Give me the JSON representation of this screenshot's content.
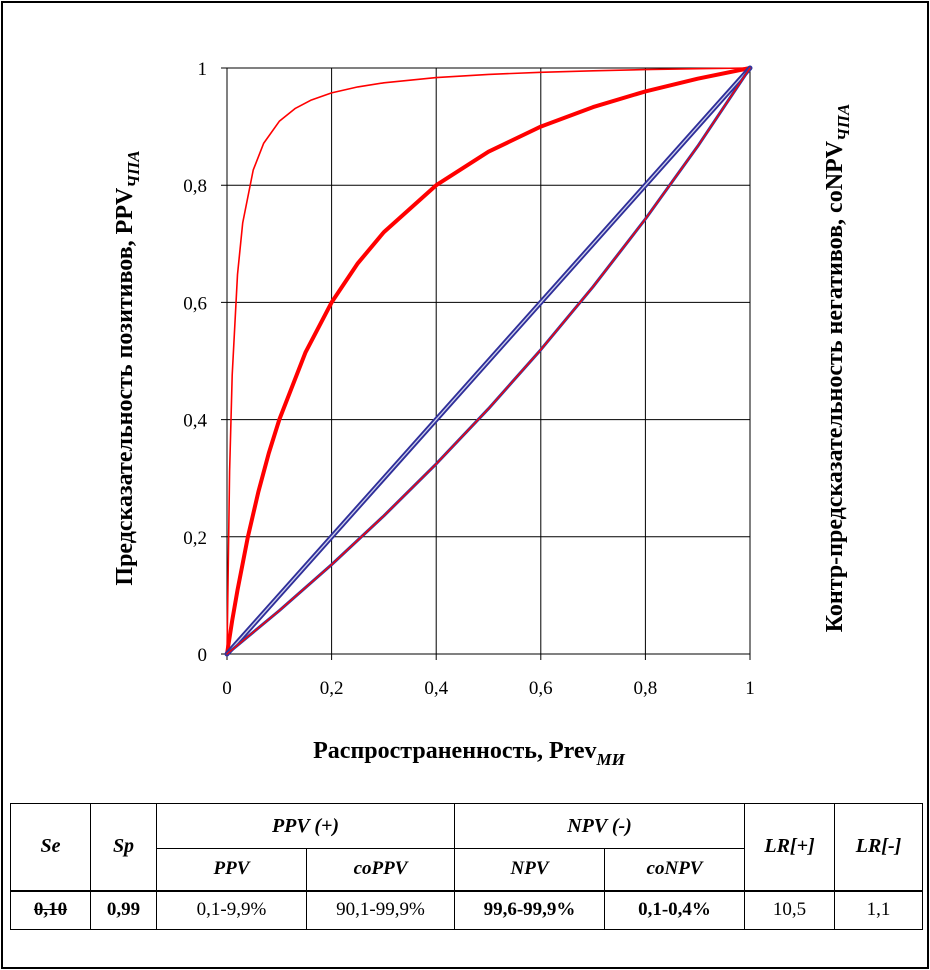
{
  "chart_data": {
    "type": "line",
    "xlabel": "Распространенность,  Prev",
    "xlabel_sub": "МИ",
    "ylabel_left": "Предсказательность  позитивов,  PPV",
    "ylabel_left_sub": "ЧПА",
    "ylabel_right": "Контр-предсказательность  негативов,  coNPV",
    "ylabel_right_sub": "ЧПА",
    "xlim": [
      0,
      1
    ],
    "ylim": [
      0,
      1
    ],
    "x_ticks": [
      "0",
      "0,2",
      "0,4",
      "0,6",
      "0,8",
      "1"
    ],
    "y_ticks": [
      "0",
      "0,2",
      "0,4",
      "0,6",
      "0,8",
      "1"
    ],
    "grid": true,
    "series": [
      {
        "color": "#ff0000",
        "width": 1.6,
        "lr": 90,
        "x": [
          0,
          0.005,
          0.01,
          0.02,
          0.03,
          0.05,
          0.07,
          0.1,
          0.13,
          0.16,
          0.2,
          0.25,
          0.3,
          0.4,
          0.5,
          0.6,
          0.7,
          0.8,
          0.9,
          1
        ]
      },
      {
        "color": "#ff0000",
        "width": 4,
        "lr": 6,
        "x": [
          0,
          0.01,
          0.02,
          0.04,
          0.06,
          0.08,
          0.1,
          0.15,
          0.2,
          0.25,
          0.3,
          0.4,
          0.5,
          0.6,
          0.7,
          0.8,
          0.9,
          1
        ]
      },
      {
        "color": "#2f2f9a",
        "width": 5,
        "lr": 1.0,
        "x": [
          0,
          1
        ]
      },
      {
        "color": "#cfd0ec",
        "width": 1.3,
        "lr": 1.0,
        "x": [
          0,
          1
        ]
      },
      {
        "color": "#3a3aa0",
        "width": 3,
        "lr": 0.72,
        "x": [
          0,
          0.1,
          0.2,
          0.3,
          0.4,
          0.5,
          0.6,
          0.7,
          0.8,
          0.9,
          1
        ]
      },
      {
        "color": "#ff0000",
        "width": 1.3,
        "lr": 0.72,
        "x": [
          0,
          0.1,
          0.2,
          0.3,
          0.4,
          0.5,
          0.6,
          0.7,
          0.8,
          0.9,
          1
        ]
      }
    ]
  },
  "table": {
    "headers": {
      "se": "Se",
      "sp": "Sp",
      "ppv_group": "PPV (+)",
      "npv_group": "NPV (-)",
      "lr_plus": "LR[+]",
      "lr_minus": "LR[-]",
      "ppv": "PPV",
      "coppv": "coPPV",
      "npv": "NPV",
      "conpv": "coNPV"
    },
    "row": {
      "se": "0,10",
      "sp": "0,99",
      "ppv": "0,1-9,9%",
      "coppv": "90,1-99,9%",
      "npv": "99,6-99,9%",
      "conpv": "0,1-0,4%",
      "lr_plus": "10,5",
      "lr_minus": "1,1"
    }
  }
}
